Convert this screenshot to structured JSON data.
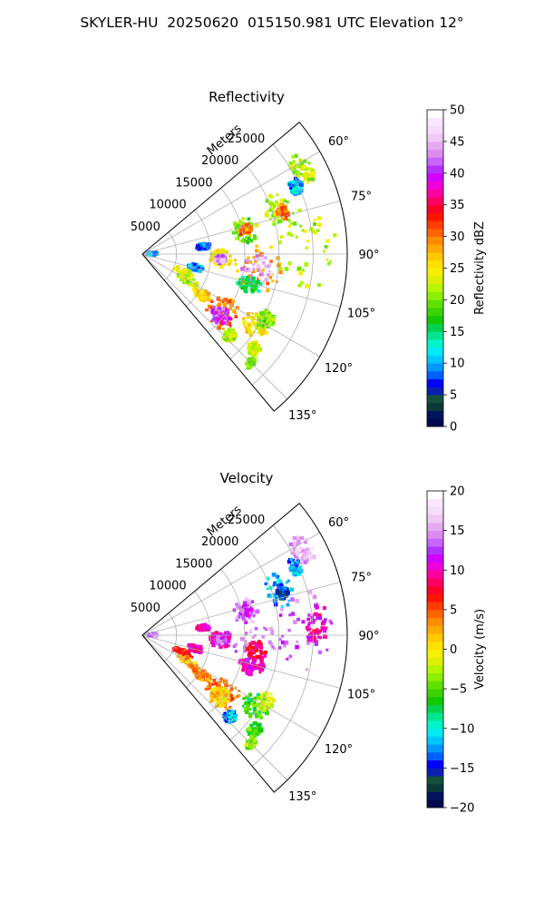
{
  "figure_title": "SKYLER-HU  20250620  015150.981 UTC Elevation 12°",
  "chart_data": [
    {
      "type": "polar-sector-radar",
      "title": "Reflectivity",
      "radial_label": "Meters",
      "radial_ticks": [
        5000,
        10000,
        15000,
        20000,
        25000
      ],
      "r_max": 30000,
      "azimuth_range_deg": [
        50,
        140
      ],
      "azimuth_ticks_deg": [
        60,
        75,
        90,
        105,
        120,
        135
      ],
      "azimuth_tick_labels": [
        "60°",
        "75°",
        "90°",
        "105°",
        "120°",
        "135°"
      ],
      "grid": true,
      "colorbar": {
        "label": "Reflectivity dBZ",
        "min": 0,
        "max": 50,
        "ticks": [
          0,
          5,
          10,
          15,
          20,
          25,
          30,
          35,
          40,
          45,
          50
        ],
        "colors": [
          "#000a4d",
          "#00135e",
          "#0b3a36",
          "#12503a",
          "#0a1fb0",
          "#0000ff",
          "#0060ff",
          "#0098ff",
          "#00c8ff",
          "#00ecf5",
          "#00f5c8",
          "#00e690",
          "#00d24c",
          "#14c800",
          "#3cd200",
          "#5fe100",
          "#8cf000",
          "#b4f500",
          "#dcf000",
          "#f5f000",
          "#ffe100",
          "#ffc800",
          "#ffaa00",
          "#ff8c00",
          "#ff6400",
          "#ff3c00",
          "#ff1400",
          "#ff0028",
          "#ff0064",
          "#ff00a0",
          "#f000dc",
          "#d200ff",
          "#b432ff",
          "#c864ff",
          "#dc8cf0",
          "#e6aaf0",
          "#f0c8f5",
          "#f5dcfa",
          "#fae6ff",
          "#ffffff"
        ]
      },
      "echoes": [
        {
          "az": 62,
          "r": 26500,
          "da": 5,
          "dr": 1500,
          "value": 22
        },
        {
          "az": 66,
          "r": 24500,
          "da": 3,
          "dr": 1000,
          "value": 10
        },
        {
          "az": 72,
          "r": 21000,
          "da": 7,
          "dr": 2000,
          "value": 22
        },
        {
          "az": 73,
          "r": 21500,
          "da": 3,
          "dr": 900,
          "value": 30
        },
        {
          "az": 77,
          "r": 15500,
          "da": 7,
          "dr": 1800,
          "value": 20
        },
        {
          "az": 77,
          "r": 15500,
          "da": 3,
          "dr": 900,
          "value": 30
        },
        {
          "az": 83,
          "r": 9000,
          "da": 3,
          "dr": 1000,
          "value": 8
        },
        {
          "az": 88,
          "r": 24000,
          "da": 14,
          "dr": 4500,
          "value": 22
        },
        {
          "az": 97,
          "r": 17000,
          "da": 12,
          "dr": 3500,
          "value": 28
        },
        {
          "az": 98,
          "r": 17000,
          "da": 8,
          "dr": 2200,
          "value": 44
        },
        {
          "az": 106,
          "r": 16500,
          "da": 4,
          "dr": 2000,
          "value": 15
        },
        {
          "az": 93,
          "r": 11500,
          "da": 6,
          "dr": 1700,
          "value": 25
        },
        {
          "az": 94,
          "r": 11500,
          "da": 3,
          "dr": 800,
          "value": 43
        },
        {
          "az": 88,
          "r": 1500,
          "da": 10,
          "dr": 700,
          "value": 10
        },
        {
          "az": 104,
          "r": 8000,
          "da": 4,
          "dr": 1100,
          "value": 10
        },
        {
          "az": 113,
          "r": 6500,
          "da": 4,
          "dr": 1500,
          "value": 24
        },
        {
          "az": 120,
          "r": 7700,
          "da": 4,
          "dr": 1700,
          "value": 22
        },
        {
          "az": 124,
          "r": 10500,
          "da": 4,
          "dr": 1500,
          "value": 26
        },
        {
          "az": 126,
          "r": 14500,
          "da": 9,
          "dr": 2600,
          "value": 30
        },
        {
          "az": 128,
          "r": 14500,
          "da": 5,
          "dr": 1500,
          "value": 40
        },
        {
          "az": 122,
          "r": 19500,
          "da": 5,
          "dr": 2000,
          "value": 25
        },
        {
          "az": 118,
          "r": 20500,
          "da": 4,
          "dr": 1300,
          "value": 20
        },
        {
          "az": 133,
          "r": 17500,
          "da": 3,
          "dr": 900,
          "value": 22
        },
        {
          "az": 130,
          "r": 21500,
          "da": 3,
          "dr": 1000,
          "value": 23
        },
        {
          "az": 135,
          "r": 22500,
          "da": 2,
          "dr": 600,
          "value": 20
        }
      ]
    },
    {
      "type": "polar-sector-radar",
      "title": "Velocity",
      "radial_label": "Meters",
      "radial_ticks": [
        5000,
        10000,
        15000,
        20000,
        25000
      ],
      "r_max": 30000,
      "azimuth_range_deg": [
        50,
        140
      ],
      "azimuth_ticks_deg": [
        60,
        75,
        90,
        105,
        120,
        135
      ],
      "azimuth_tick_labels": [
        "60°",
        "75°",
        "90°",
        "105°",
        "120°",
        "135°"
      ],
      "grid": true,
      "colorbar": {
        "label": "Velocity (m/s)",
        "min": -20,
        "max": 20,
        "ticks": [
          -20,
          -15,
          -10,
          -5,
          0,
          5,
          10,
          15,
          20
        ],
        "colors": [
          "#000a4d",
          "#00135e",
          "#0b3a36",
          "#12503a",
          "#0a1fb0",
          "#0000ff",
          "#0060ff",
          "#0098ff",
          "#00c8ff",
          "#00ecf5",
          "#00f5c8",
          "#00e690",
          "#00d24c",
          "#14c800",
          "#3cd200",
          "#5fe100",
          "#8cf000",
          "#b4f500",
          "#dcf000",
          "#f5f000",
          "#ffe100",
          "#ffc800",
          "#ffaa00",
          "#ff8c00",
          "#ff6400",
          "#ff3c00",
          "#ff1400",
          "#ff0028",
          "#ff0064",
          "#ff00a0",
          "#f000dc",
          "#d200ff",
          "#b432ff",
          "#c864ff",
          "#dc8cf0",
          "#e6aaf0",
          "#f0c8f5",
          "#f5dcfa",
          "#fae6ff",
          "#ffffff"
        ]
      },
      "echoes": [
        {
          "az": 62,
          "r": 26500,
          "da": 5,
          "dr": 1500,
          "value": 16
        },
        {
          "az": 66,
          "r": 24500,
          "da": 3,
          "dr": 1000,
          "value": -12
        },
        {
          "az": 72,
          "r": 21000,
          "da": 7,
          "dr": 2000,
          "value": -12
        },
        {
          "az": 73,
          "r": 21500,
          "da": 3,
          "dr": 900,
          "value": -15
        },
        {
          "az": 77,
          "r": 15500,
          "da": 7,
          "dr": 1800,
          "value": 14
        },
        {
          "az": 77,
          "r": 15500,
          "da": 3,
          "dr": 900,
          "value": 12
        },
        {
          "az": 83,
          "r": 9000,
          "da": 3,
          "dr": 1000,
          "value": 10
        },
        {
          "az": 88,
          "r": 24000,
          "da": 14,
          "dr": 4500,
          "value": 13
        },
        {
          "az": 88,
          "r": 25500,
          "da": 5,
          "dr": 1500,
          "value": 10
        },
        {
          "az": 97,
          "r": 17000,
          "da": 12,
          "dr": 3500,
          "value": 14
        },
        {
          "az": 98,
          "r": 17000,
          "da": 5,
          "dr": 1500,
          "value": 8
        },
        {
          "az": 106,
          "r": 16500,
          "da": 4,
          "dr": 2000,
          "value": 10
        },
        {
          "az": 93,
          "r": 11500,
          "da": 6,
          "dr": 1700,
          "value": 10
        },
        {
          "az": 94,
          "r": 11500,
          "da": 3,
          "dr": 800,
          "value": 13
        },
        {
          "az": 88,
          "r": 1500,
          "da": 10,
          "dr": 700,
          "value": 14
        },
        {
          "az": 104,
          "r": 8000,
          "da": 4,
          "dr": 1100,
          "value": 10
        },
        {
          "az": 113,
          "r": 6500,
          "da": 4,
          "dr": 1500,
          "value": 6
        },
        {
          "az": 120,
          "r": 7700,
          "da": 4,
          "dr": 1700,
          "value": 2
        },
        {
          "az": 124,
          "r": 10500,
          "da": 4,
          "dr": 1500,
          "value": 3
        },
        {
          "az": 126,
          "r": 14500,
          "da": 9,
          "dr": 2600,
          "value": 4
        },
        {
          "az": 128,
          "r": 14500,
          "da": 5,
          "dr": 1500,
          "value": 1
        },
        {
          "az": 122,
          "r": 19500,
          "da": 5,
          "dr": 2000,
          "value": -6
        },
        {
          "az": 118,
          "r": 20500,
          "da": 4,
          "dr": 1300,
          "value": -2
        },
        {
          "az": 133,
          "r": 17500,
          "da": 3,
          "dr": 900,
          "value": -12
        },
        {
          "az": 130,
          "r": 21500,
          "da": 3,
          "dr": 1000,
          "value": -6
        },
        {
          "az": 135,
          "r": 22500,
          "da": 2,
          "dr": 600,
          "value": -4
        }
      ]
    }
  ]
}
